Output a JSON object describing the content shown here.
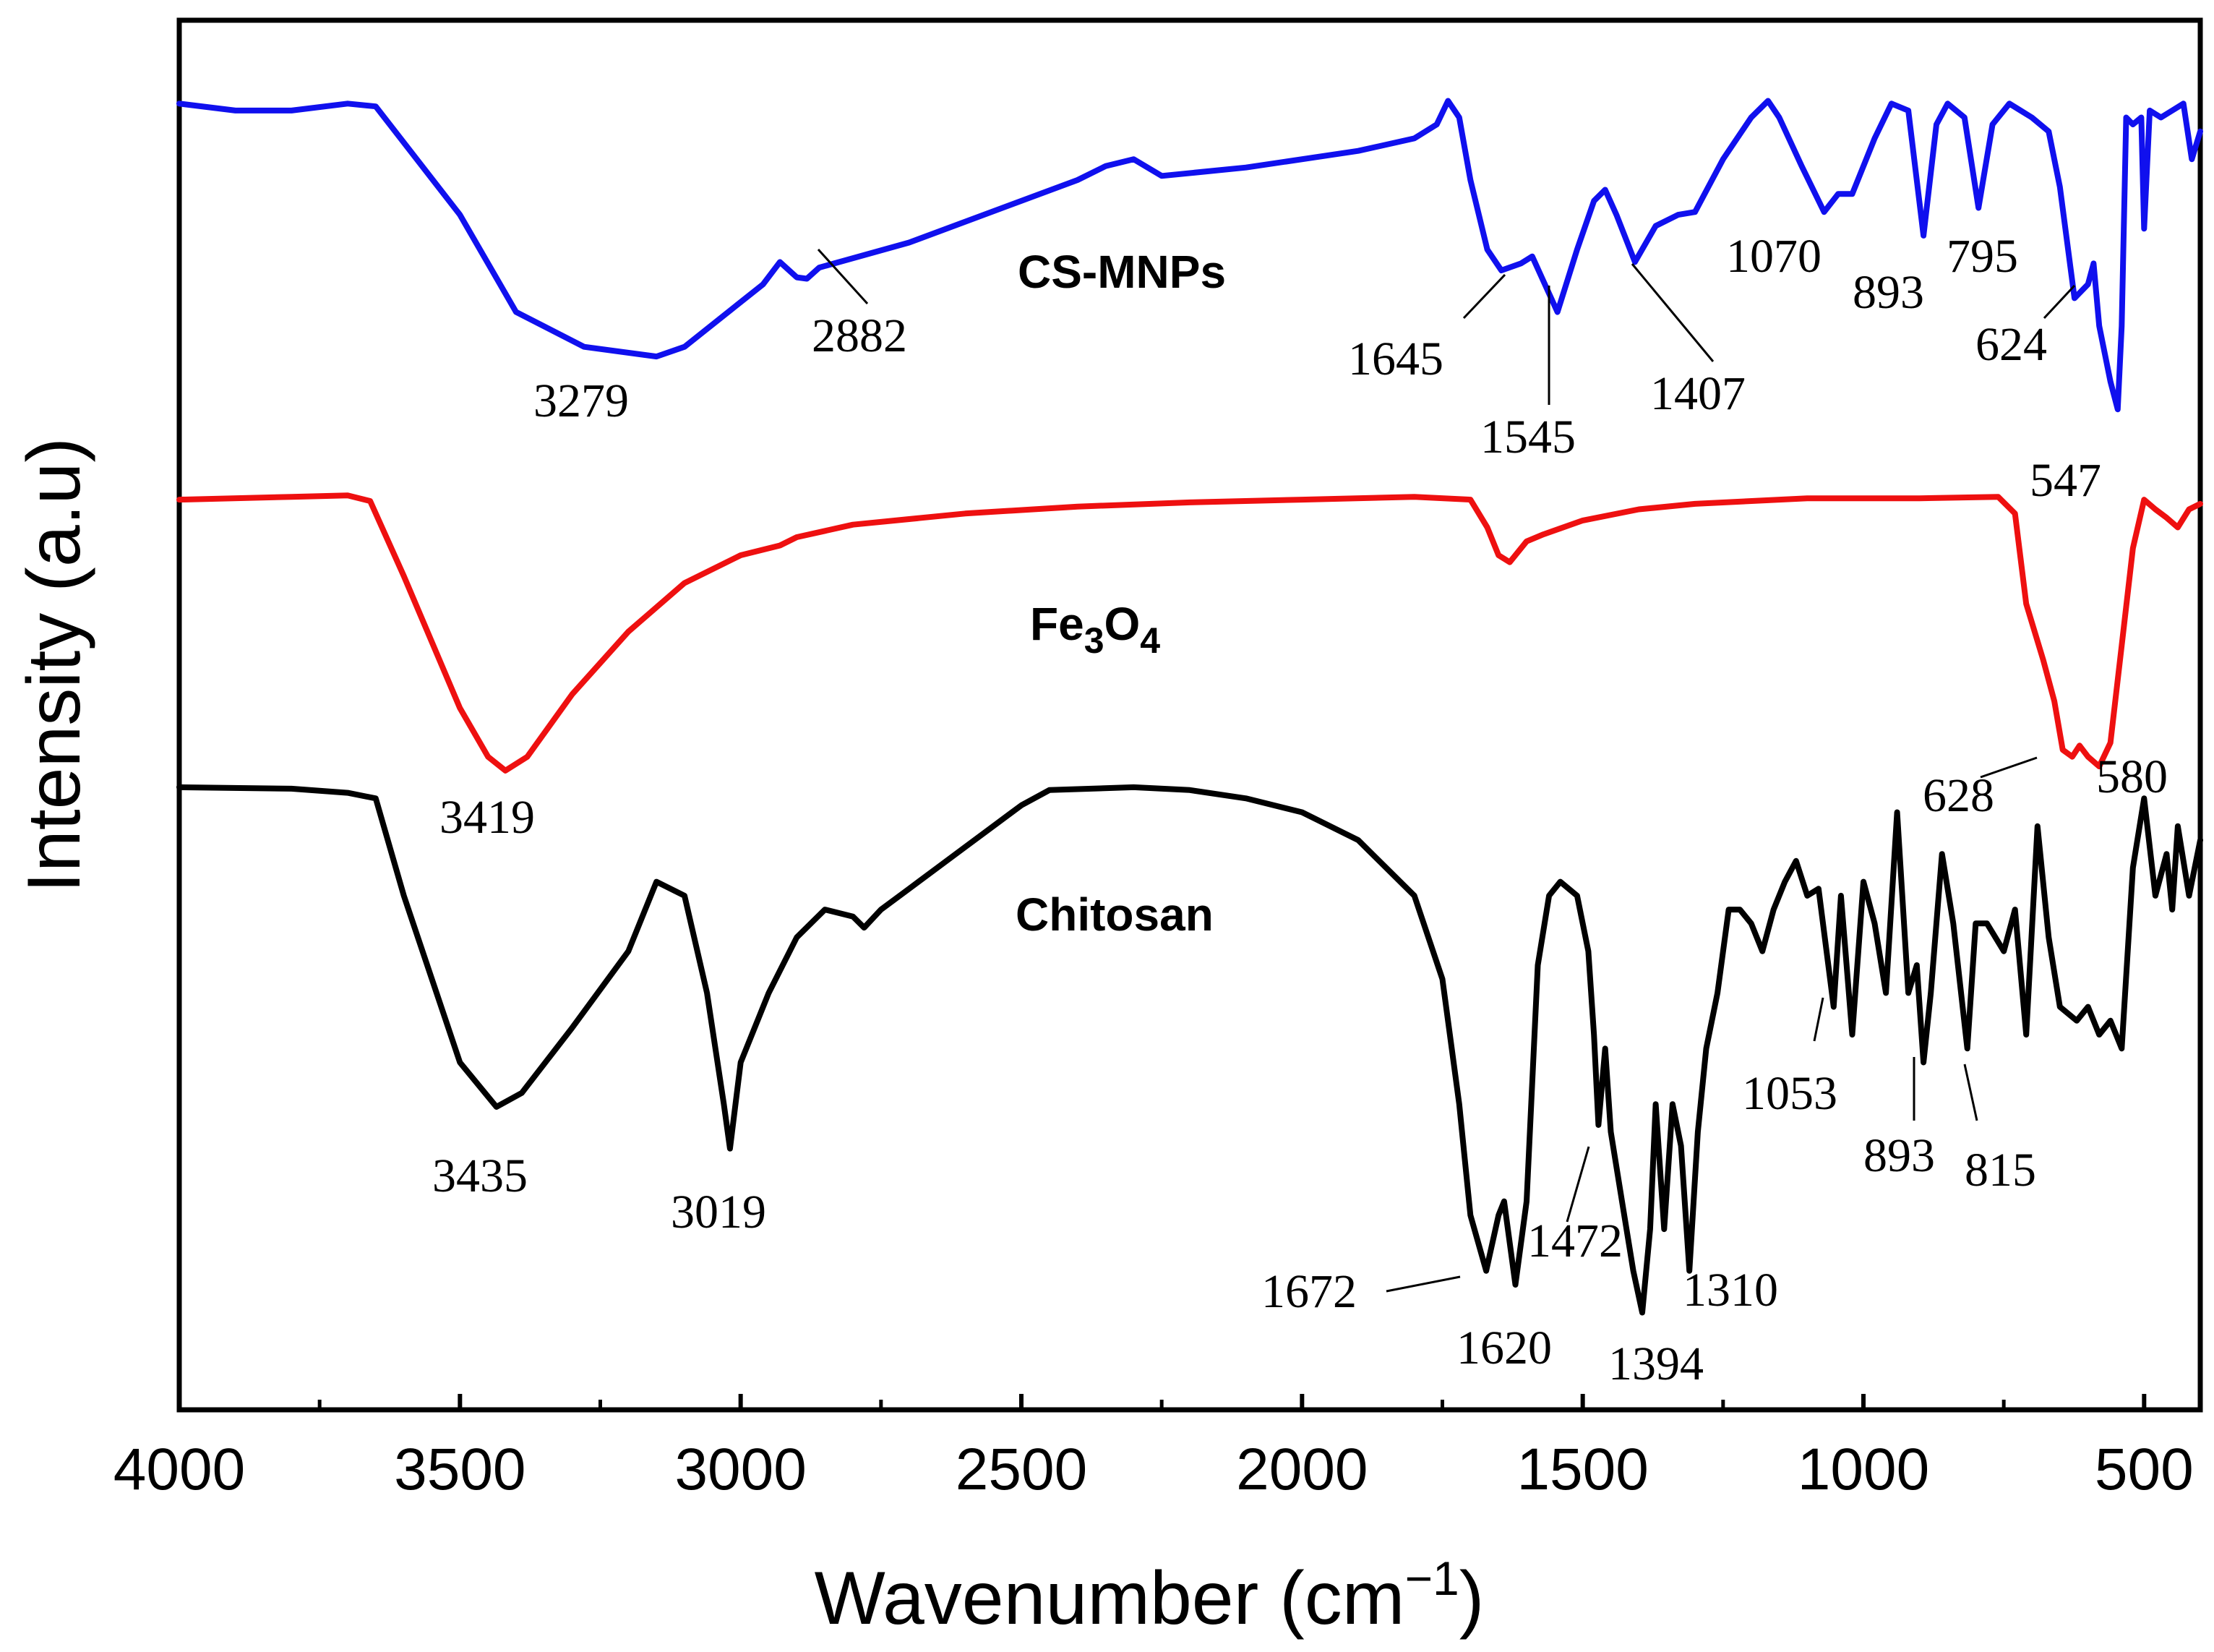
{
  "chart_data": {
    "type": "line",
    "title": "",
    "xlabel": "Wavenumber",
    "xlabel_unit_base": "cm",
    "xlabel_unit_exp": "−1",
    "ylabel": "Intensity (a.u)",
    "xlim": [
      4000,
      400
    ],
    "x_reversed": true,
    "xticks": [
      4000,
      3500,
      3000,
      2500,
      2000,
      1500,
      1000,
      500
    ],
    "xtick_labels": [
      "4000",
      "3500",
      "3000",
      "2500",
      "2000",
      "1500",
      "1000",
      "500"
    ],
    "y_ticks": "none",
    "grid": false,
    "legend": "none",
    "series": [
      {
        "name": "CS-MNPs",
        "name_text": "CS-MNPs",
        "color": "#1010ee",
        "baseline": 0.88,
        "depth_unit": 0.0,
        "points": [
          [
            4000,
            0.94
          ],
          [
            3900,
            0.935
          ],
          [
            3800,
            0.935
          ],
          [
            3700,
            0.94
          ],
          [
            3650,
            0.938
          ],
          [
            3500,
            0.86
          ],
          [
            3400,
            0.79
          ],
          [
            3279,
            0.765
          ],
          [
            3150,
            0.758
          ],
          [
            3100,
            0.765
          ],
          [
            2960,
            0.81
          ],
          [
            2930,
            0.826
          ],
          [
            2900,
            0.815
          ],
          [
            2882,
            0.814
          ],
          [
            2860,
            0.822
          ],
          [
            2700,
            0.84
          ],
          [
            2400,
            0.885
          ],
          [
            2350,
            0.895
          ],
          [
            2300,
            0.9
          ],
          [
            2250,
            0.888
          ],
          [
            2100,
            0.894
          ],
          [
            1900,
            0.906
          ],
          [
            1800,
            0.915
          ],
          [
            1760,
            0.925
          ],
          [
            1740,
            0.942
          ],
          [
            1720,
            0.93
          ],
          [
            1700,
            0.885
          ],
          [
            1670,
            0.835
          ],
          [
            1645,
            0.82
          ],
          [
            1610,
            0.825
          ],
          [
            1590,
            0.83
          ],
          [
            1545,
            0.79
          ],
          [
            1510,
            0.835
          ],
          [
            1480,
            0.87
          ],
          [
            1460,
            0.878
          ],
          [
            1440,
            0.86
          ],
          [
            1407,
            0.826
          ],
          [
            1370,
            0.852
          ],
          [
            1330,
            0.86
          ],
          [
            1300,
            0.862
          ],
          [
            1250,
            0.9
          ],
          [
            1200,
            0.93
          ],
          [
            1170,
            0.942
          ],
          [
            1150,
            0.93
          ],
          [
            1110,
            0.895
          ],
          [
            1070,
            0.862
          ],
          [
            1045,
            0.875
          ],
          [
            1020,
            0.875
          ],
          [
            980,
            0.915
          ],
          [
            950,
            0.94
          ],
          [
            920,
            0.935
          ],
          [
            893,
            0.845
          ],
          [
            870,
            0.925
          ],
          [
            850,
            0.94
          ],
          [
            820,
            0.93
          ],
          [
            795,
            0.865
          ],
          [
            770,
            0.925
          ],
          [
            740,
            0.94
          ],
          [
            700,
            0.93
          ],
          [
            670,
            0.92
          ],
          [
            650,
            0.88
          ],
          [
            624,
            0.8
          ],
          [
            600,
            0.81
          ],
          [
            590,
            0.825
          ],
          [
            580,
            0.78
          ],
          [
            560,
            0.74
          ],
          [
            547,
            0.72
          ],
          [
            540,
            0.78
          ],
          [
            532,
            0.93
          ],
          [
            520,
            0.925
          ],
          [
            505,
            0.93
          ],
          [
            500,
            0.85
          ],
          [
            490,
            0.935
          ],
          [
            470,
            0.93
          ],
          [
            450,
            0.935
          ],
          [
            430,
            0.94
          ],
          [
            415,
            0.9
          ],
          [
            400,
            0.92
          ]
        ]
      },
      {
        "name": "Fe3O4",
        "name_base": "Fe",
        "name_sub1": "3",
        "name_mid": "O",
        "name_sub2": "4",
        "color": "#ee1010",
        "points": [
          [
            4000,
            0.655
          ],
          [
            3800,
            0.657
          ],
          [
            3700,
            0.658
          ],
          [
            3660,
            0.654
          ],
          [
            3600,
            0.6
          ],
          [
            3500,
            0.505
          ],
          [
            3450,
            0.47
          ],
          [
            3419,
            0.46
          ],
          [
            3380,
            0.47
          ],
          [
            3300,
            0.515
          ],
          [
            3200,
            0.56
          ],
          [
            3100,
            0.595
          ],
          [
            3000,
            0.615
          ],
          [
            2930,
            0.622
          ],
          [
            2900,
            0.628
          ],
          [
            2800,
            0.637
          ],
          [
            2600,
            0.645
          ],
          [
            2400,
            0.65
          ],
          [
            2200,
            0.653
          ],
          [
            2000,
            0.655
          ],
          [
            1800,
            0.657
          ],
          [
            1700,
            0.655
          ],
          [
            1670,
            0.635
          ],
          [
            1650,
            0.615
          ],
          [
            1630,
            0.61
          ],
          [
            1600,
            0.625
          ],
          [
            1570,
            0.63
          ],
          [
            1500,
            0.64
          ],
          [
            1400,
            0.648
          ],
          [
            1300,
            0.652
          ],
          [
            1100,
            0.656
          ],
          [
            900,
            0.656
          ],
          [
            760,
            0.657
          ],
          [
            730,
            0.645
          ],
          [
            710,
            0.58
          ],
          [
            680,
            0.54
          ],
          [
            660,
            0.51
          ],
          [
            645,
            0.475
          ],
          [
            628,
            0.47
          ],
          [
            615,
            0.478
          ],
          [
            600,
            0.47
          ],
          [
            580,
            0.463
          ],
          [
            560,
            0.48
          ],
          [
            540,
            0.55
          ],
          [
            520,
            0.62
          ],
          [
            500,
            0.655
          ],
          [
            480,
            0.648
          ],
          [
            460,
            0.642
          ],
          [
            440,
            0.635
          ],
          [
            420,
            0.648
          ],
          [
            400,
            0.652
          ]
        ]
      },
      {
        "name": "Chitosan",
        "name_text": "Chitosan",
        "color": "#000000",
        "points": [
          [
            4000,
            0.448
          ],
          [
            3800,
            0.447
          ],
          [
            3700,
            0.444
          ],
          [
            3650,
            0.44
          ],
          [
            3600,
            0.37
          ],
          [
            3500,
            0.25
          ],
          [
            3435,
            0.218
          ],
          [
            3390,
            0.228
          ],
          [
            3300,
            0.275
          ],
          [
            3200,
            0.33
          ],
          [
            3150,
            0.38
          ],
          [
            3100,
            0.37
          ],
          [
            3060,
            0.3
          ],
          [
            3030,
            0.22
          ],
          [
            3019,
            0.188
          ],
          [
            3000,
            0.25
          ],
          [
            2950,
            0.3
          ],
          [
            2900,
            0.34
          ],
          [
            2850,
            0.36
          ],
          [
            2800,
            0.355
          ],
          [
            2780,
            0.347
          ],
          [
            2750,
            0.36
          ],
          [
            2700,
            0.375
          ],
          [
            2650,
            0.39
          ],
          [
            2600,
            0.405
          ],
          [
            2500,
            0.435
          ],
          [
            2450,
            0.446
          ],
          [
            2300,
            0.448
          ],
          [
            2200,
            0.446
          ],
          [
            2100,
            0.44
          ],
          [
            2000,
            0.43
          ],
          [
            1900,
            0.41
          ],
          [
            1800,
            0.37
          ],
          [
            1750,
            0.31
          ],
          [
            1720,
            0.22
          ],
          [
            1700,
            0.14
          ],
          [
            1672,
            0.1
          ],
          [
            1650,
            0.14
          ],
          [
            1640,
            0.15
          ],
          [
            1620,
            0.09
          ],
          [
            1600,
            0.15
          ],
          [
            1580,
            0.32
          ],
          [
            1560,
            0.37
          ],
          [
            1540,
            0.38
          ],
          [
            1510,
            0.37
          ],
          [
            1490,
            0.33
          ],
          [
            1480,
            0.27
          ],
          [
            1472,
            0.205
          ],
          [
            1460,
            0.26
          ],
          [
            1450,
            0.2
          ],
          [
            1430,
            0.15
          ],
          [
            1410,
            0.1
          ],
          [
            1394,
            0.07
          ],
          [
            1380,
            0.13
          ],
          [
            1370,
            0.22
          ],
          [
            1355,
            0.13
          ],
          [
            1340,
            0.22
          ],
          [
            1325,
            0.19
          ],
          [
            1310,
            0.1
          ],
          [
            1295,
            0.2
          ],
          [
            1280,
            0.26
          ],
          [
            1260,
            0.3
          ],
          [
            1240,
            0.36
          ],
          [
            1220,
            0.36
          ],
          [
            1200,
            0.35
          ],
          [
            1180,
            0.33
          ],
          [
            1160,
            0.36
          ],
          [
            1140,
            0.38
          ],
          [
            1120,
            0.395
          ],
          [
            1100,
            0.37
          ],
          [
            1080,
            0.375
          ],
          [
            1053,
            0.29
          ],
          [
            1040,
            0.37
          ],
          [
            1020,
            0.27
          ],
          [
            1000,
            0.38
          ],
          [
            980,
            0.35
          ],
          [
            960,
            0.3
          ],
          [
            940,
            0.43
          ],
          [
            920,
            0.3
          ],
          [
            905,
            0.32
          ],
          [
            893,
            0.25
          ],
          [
            880,
            0.3
          ],
          [
            860,
            0.4
          ],
          [
            840,
            0.35
          ],
          [
            815,
            0.26
          ],
          [
            800,
            0.35
          ],
          [
            780,
            0.35
          ],
          [
            750,
            0.33
          ],
          [
            730,
            0.36
          ],
          [
            710,
            0.27
          ],
          [
            690,
            0.42
          ],
          [
            670,
            0.34
          ],
          [
            650,
            0.29
          ],
          [
            620,
            0.28
          ],
          [
            600,
            0.29
          ],
          [
            580,
            0.27
          ],
          [
            560,
            0.28
          ],
          [
            540,
            0.26
          ],
          [
            520,
            0.39
          ],
          [
            500,
            0.44
          ],
          [
            480,
            0.37
          ],
          [
            460,
            0.4
          ],
          [
            450,
            0.36
          ],
          [
            440,
            0.42
          ],
          [
            420,
            0.37
          ],
          [
            400,
            0.41
          ]
        ]
      }
    ],
    "annotations": [
      {
        "series": "CS-MNPs",
        "text": "3279",
        "x": 3279
      },
      {
        "series": "CS-MNPs",
        "text": "2882",
        "x": 2882
      },
      {
        "series": "CS-MNPs",
        "text": "1645",
        "x": 1645
      },
      {
        "series": "CS-MNPs",
        "text": "1545",
        "x": 1545
      },
      {
        "series": "CS-MNPs",
        "text": "1407",
        "x": 1407
      },
      {
        "series": "CS-MNPs",
        "text": "1070",
        "x": 1070
      },
      {
        "series": "CS-MNPs",
        "text": "893",
        "x": 893
      },
      {
        "series": "CS-MNPs",
        "text": "795",
        "x": 795
      },
      {
        "series": "CS-MNPs",
        "text": "624",
        "x": 624
      },
      {
        "series": "CS-MNPs",
        "text": "547",
        "x": 547
      },
      {
        "series": "Fe3O4",
        "text": "3419",
        "x": 3419
      },
      {
        "series": "Fe3O4",
        "text": "628",
        "x": 628
      },
      {
        "series": "Fe3O4",
        "text": "580",
        "x": 580
      },
      {
        "series": "Chitosan",
        "text": "3435",
        "x": 3435
      },
      {
        "series": "Chitosan",
        "text": "3019",
        "x": 3019
      },
      {
        "series": "Chitosan",
        "text": "1672",
        "x": 1672
      },
      {
        "series": "Chitosan",
        "text": "1620",
        "x": 1620
      },
      {
        "series": "Chitosan",
        "text": "1472",
        "x": 1472
      },
      {
        "series": "Chitosan",
        "text": "1394",
        "x": 1394
      },
      {
        "series": "Chitosan",
        "text": "1310",
        "x": 1310
      },
      {
        "series": "Chitosan",
        "text": "1053",
        "x": 1053
      },
      {
        "series": "Chitosan",
        "text": "893",
        "x": 893
      },
      {
        "series": "Chitosan",
        "text": "815",
        "x": 815
      }
    ]
  }
}
